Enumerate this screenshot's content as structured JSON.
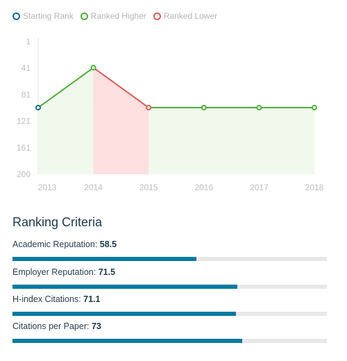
{
  "legend": [
    {
      "label": "Starting Rank",
      "color": "#116d8e"
    },
    {
      "label": "Ranked Higher",
      "color": "#4caf37"
    },
    {
      "label": "Ranked Lower",
      "color": "#e05a55"
    }
  ],
  "chart_data": {
    "type": "line",
    "x": [
      "2013",
      "2014",
      "2015",
      "2016",
      "2017",
      "2018"
    ],
    "values": [
      100,
      40,
      100,
      100,
      100,
      100
    ],
    "point_status": [
      "start",
      "higher",
      "lower",
      "higher",
      "higher",
      "higher"
    ],
    "ylim": [
      1,
      200
    ],
    "y_ticks": [
      "1",
      "41",
      "81",
      "121",
      "161",
      "200"
    ],
    "y_inverted": true,
    "colors": {
      "start": "#116d8e",
      "higher": "#4caf37",
      "lower": "#e05a55",
      "higher_fill": "#f0f9ec",
      "lower_fill": "#fde0df"
    }
  },
  "criteria": {
    "title": "Ranking Criteria",
    "bar_color": "#0a7aa3",
    "items": [
      {
        "label": "Academic Reputation:",
        "value": "58.5",
        "score": 58.5
      },
      {
        "label": "Employer Reputation:",
        "value": "71.5",
        "score": 71.5
      },
      {
        "label": "H-index Citations:",
        "value": "71.1",
        "score": 71.1
      },
      {
        "label": "Citations per Paper:",
        "value": "73",
        "score": 73
      }
    ]
  }
}
